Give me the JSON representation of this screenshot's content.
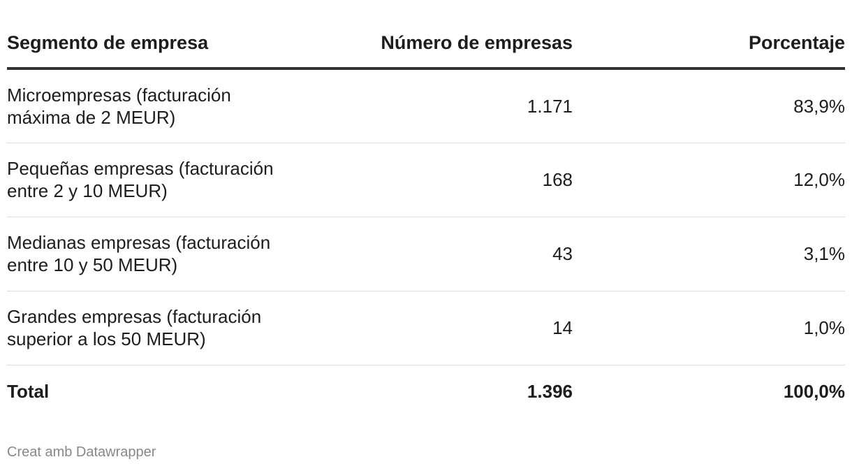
{
  "chart_data": {
    "type": "table",
    "columns": [
      "Segmento de empresa",
      "Número de empresas",
      "Porcentaje"
    ],
    "rows": [
      {
        "segment": "Microempresas (facturación máxima de 2 MEUR)",
        "segment_line1": "Microempresas (facturación",
        "segment_line2": "máxima de 2 MEUR)",
        "count": "1.171",
        "count_value": 1171,
        "percent": "83,9%",
        "percent_value": 83.9
      },
      {
        "segment": "Pequeñas empresas (facturación entre 2 y 10 MEUR)",
        "segment_line1": "Pequeñas empresas (facturación",
        "segment_line2": "entre 2 y 10 MEUR)",
        "count": "168",
        "count_value": 168,
        "percent": "12,0%",
        "percent_value": 12.0
      },
      {
        "segment": "Medianas empresas (facturación entre 10 y 50 MEUR)",
        "segment_line1": "Medianas empresas (facturación",
        "segment_line2": "entre 10 y 50 MEUR)",
        "count": "43",
        "count_value": 43,
        "percent": "3,1%",
        "percent_value": 3.1
      },
      {
        "segment": "Grandes empresas (facturación superior a los 50 MEUR)",
        "segment_line1": "Grandes empresas (facturación",
        "segment_line2": "superior a los 50 MEUR)",
        "count": "14",
        "count_value": 14,
        "percent": "1,0%",
        "percent_value": 1.0
      }
    ],
    "total": {
      "label": "Total",
      "count": "1.396",
      "count_value": 1396,
      "percent": "100,0%",
      "percent_value": 100.0
    }
  },
  "footer": {
    "credit": "Creat amb Datawrapper"
  },
  "colors": {
    "text": "#1d1d1d",
    "header_rule": "#333333",
    "row_rule": "#dddddd",
    "footer_text": "#888888"
  }
}
